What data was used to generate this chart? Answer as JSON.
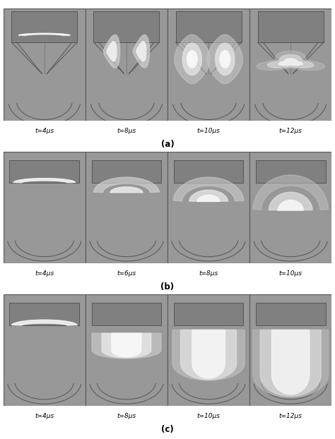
{
  "bg_color": "#989898",
  "cell_bg": "#909090",
  "box_bg": "#808080",
  "line_color": "#555555",
  "fig_bg": "#ffffff",
  "panel_a": {
    "times": [
      "t=4μs",
      "t=8μs",
      "t=10μs",
      "t=12μs"
    ],
    "label": "(a)"
  },
  "panel_b": {
    "times": [
      "t=4μs",
      "t=6μs",
      "t=8μs",
      "t=10μs"
    ],
    "label": "(b)"
  },
  "panel_c": {
    "times": [
      "t=4μs",
      "t=8μs",
      "t=10μs",
      "t=12μs"
    ],
    "label": "(c)"
  }
}
